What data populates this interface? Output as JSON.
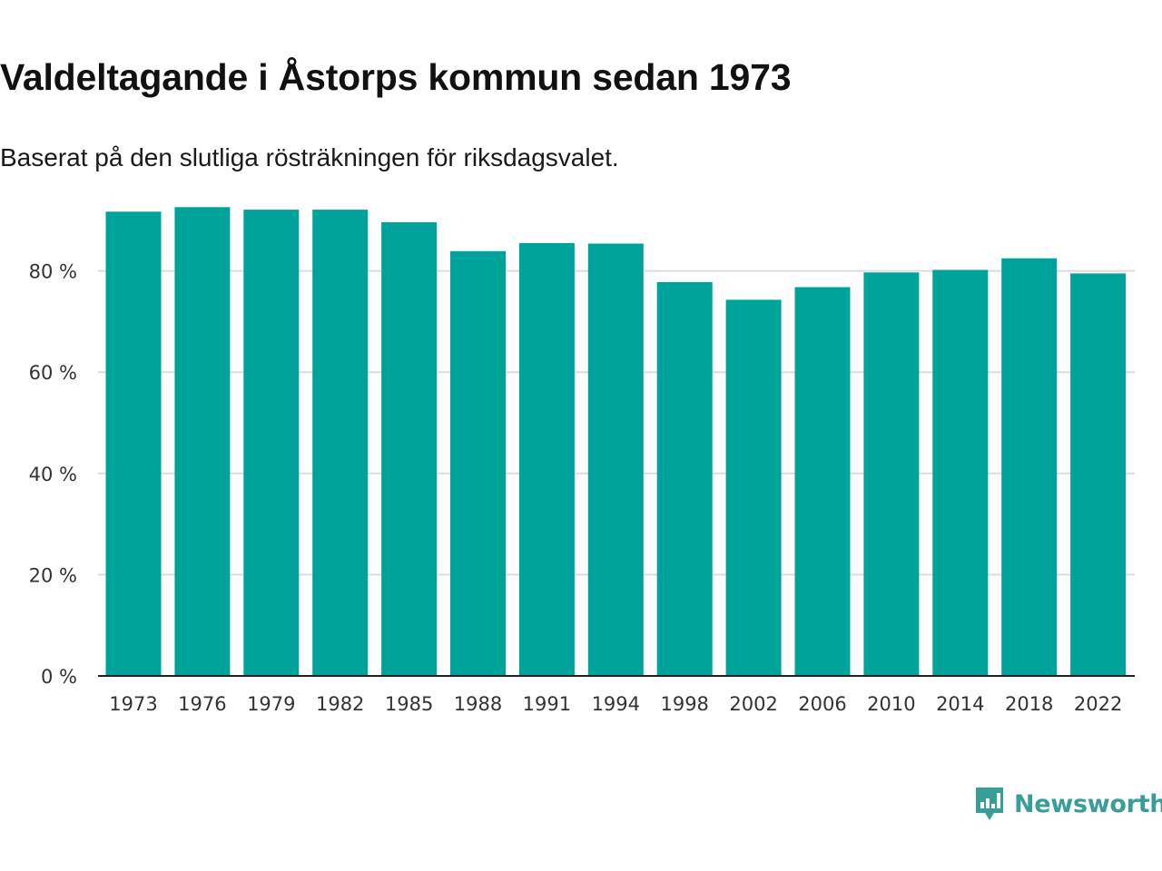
{
  "chart_data": {
    "type": "bar",
    "title": "Valdeltagande i Åstorps kommun sedan 1973",
    "subtitle": "Baserat på den slutliga rösträkningen för riksdagsvalet.",
    "xlabel": "",
    "ylabel": "",
    "categories": [
      "1973",
      "1976",
      "1979",
      "1982",
      "1985",
      "1988",
      "1991",
      "1994",
      "1998",
      "2002",
      "2006",
      "2010",
      "2014",
      "2018",
      "2022"
    ],
    "values": [
      91.7,
      92.6,
      92.1,
      92.1,
      89.6,
      83.9,
      85.5,
      85.4,
      77.8,
      74.3,
      76.8,
      79.7,
      80.2,
      82.5,
      79.5
    ],
    "ylim": [
      0,
      100
    ],
    "yticks": [
      0,
      20,
      40,
      60,
      80
    ],
    "ytick_labels": [
      "0 %",
      "20 %",
      "40 %",
      "60 %",
      "80 %"
    ],
    "grid": true,
    "legend": "none",
    "bar_color": "#00a39a"
  },
  "brand": {
    "name": "Newsworthy",
    "color": "#3a9e98"
  }
}
